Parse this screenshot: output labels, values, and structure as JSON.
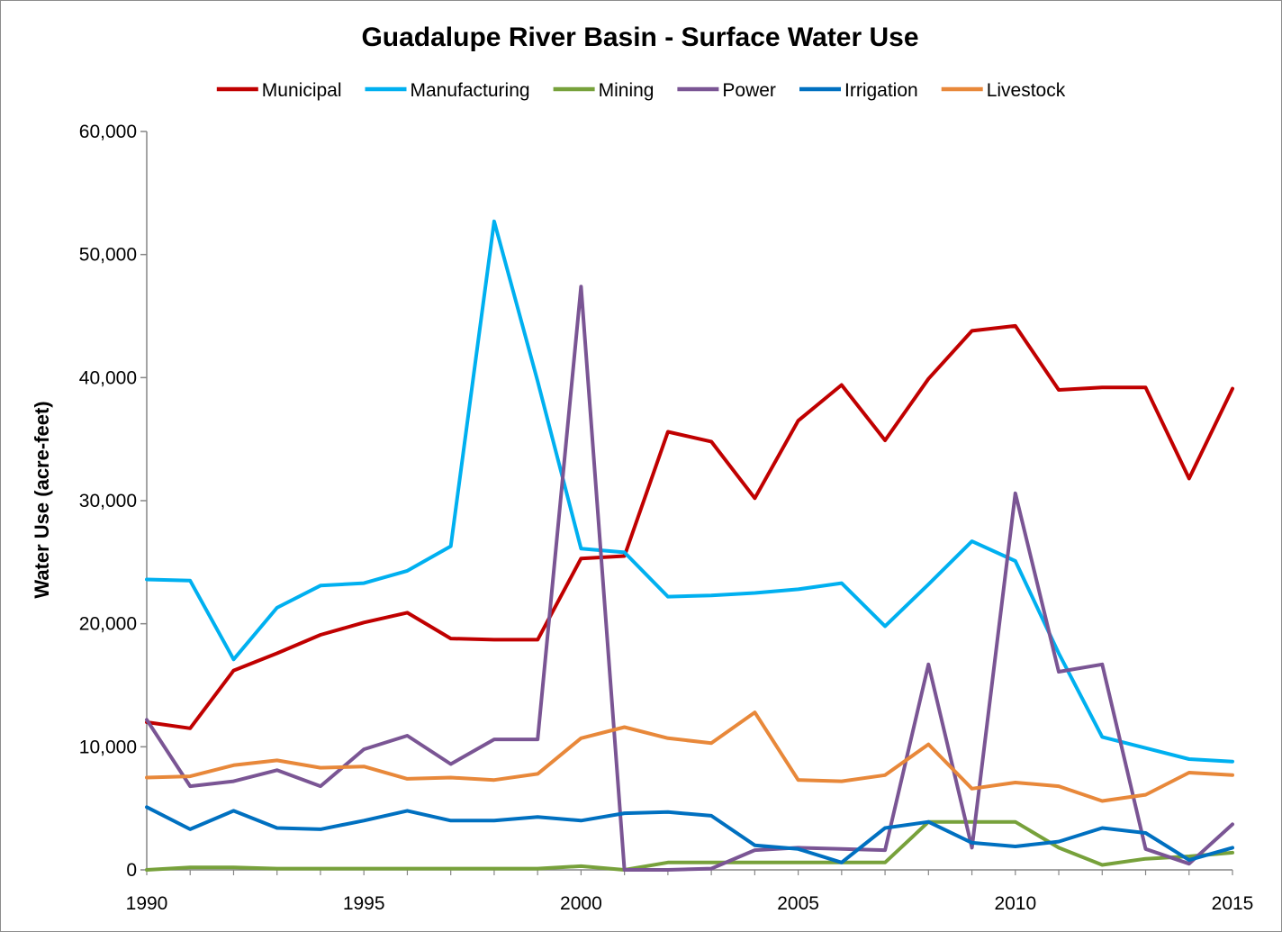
{
  "chart_data": {
    "type": "line",
    "title": "Guadalupe River Basin - Surface Water Use",
    "xlabel": "",
    "ylabel": "Water Use (acre-feet)",
    "xlim": [
      1990,
      2015
    ],
    "ylim": [
      0,
      60000
    ],
    "x_ticks": [
      "1990",
      "1995",
      "2000",
      "2005",
      "2010",
      "2015"
    ],
    "y_ticks": [
      "0",
      "10,000",
      "20,000",
      "30,000",
      "40,000",
      "50,000",
      "60,000"
    ],
    "legend_position": "top",
    "grid": false,
    "x": [
      1990,
      1991,
      1992,
      1993,
      1994,
      1995,
      1996,
      1997,
      1998,
      1999,
      2000,
      2001,
      2002,
      2003,
      2004,
      2005,
      2006,
      2007,
      2008,
      2009,
      2010,
      2011,
      2012,
      2013,
      2014,
      2015
    ],
    "series": [
      {
        "name": "Municipal",
        "color": "#c00000",
        "values": [
          12000,
          11500,
          16200,
          17600,
          19100,
          20100,
          20900,
          18800,
          18700,
          18700,
          25300,
          25500,
          35600,
          34800,
          30200,
          36500,
          39400,
          34900,
          39900,
          43800,
          44200,
          39000,
          39200,
          39200,
          31800,
          39100
        ]
      },
      {
        "name": "Manufacturing",
        "color": "#00b0f0",
        "values": [
          23600,
          23500,
          17100,
          21300,
          23100,
          23300,
          24300,
          26300,
          52700,
          39700,
          26100,
          25800,
          22200,
          22300,
          22500,
          22800,
          23300,
          19800,
          23200,
          26700,
          25100,
          17600,
          10800,
          9900,
          9000,
          8800
        ]
      },
      {
        "name": "Mining",
        "color": "#77a13b",
        "values": [
          0,
          200,
          200,
          100,
          100,
          100,
          100,
          100,
          100,
          100,
          300,
          0,
          600,
          600,
          600,
          600,
          600,
          600,
          3900,
          3900,
          3900,
          1800,
          400,
          900,
          1100,
          1400
        ]
      },
      {
        "name": "Power",
        "color": "#7a5594",
        "values": [
          12200,
          6800,
          7200,
          8100,
          6800,
          9800,
          10900,
          8600,
          10600,
          10600,
          47400,
          0,
          0,
          100,
          1600,
          1800,
          1700,
          1600,
          16700,
          1800,
          30600,
          16100,
          16700,
          1700,
          500,
          3700
        ]
      },
      {
        "name": "Irrigation",
        "color": "#0070c0",
        "values": [
          5100,
          3300,
          4800,
          3400,
          3300,
          4000,
          4800,
          4000,
          4000,
          4300,
          4000,
          4600,
          4700,
          4400,
          2000,
          1700,
          600,
          3400,
          3900,
          2200,
          1900,
          2300,
          3400,
          3000,
          800,
          1800
        ]
      },
      {
        "name": "Livestock",
        "color": "#e8883a",
        "values": [
          7500,
          7600,
          8500,
          8900,
          8300,
          8400,
          7400,
          7500,
          7300,
          7800,
          10700,
          11600,
          10700,
          10300,
          12800,
          7300,
          7200,
          7700,
          10200,
          6600,
          7100,
          6800,
          5600,
          6100,
          7900,
          7700
        ]
      }
    ]
  }
}
